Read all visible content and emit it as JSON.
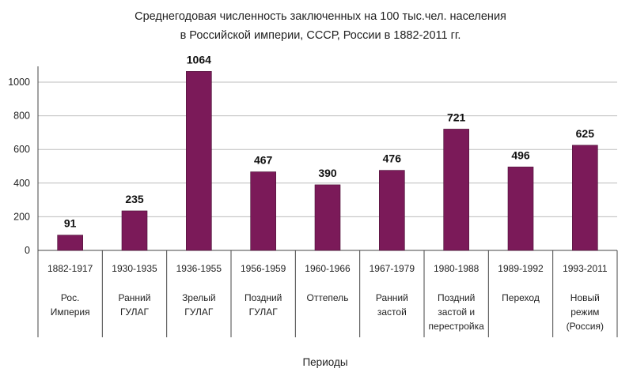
{
  "chart_data": {
    "type": "bar",
    "title": "Среднегодовая численность заключенных на 100 тыс.чел. населения",
    "subtitle": "в Российской империи, СССР, России в 1882-2011 гг.",
    "xlabel": "Периоды",
    "ylabel": "",
    "ylim": [
      0,
      1000
    ],
    "yticks": [
      "0",
      "200",
      "400",
      "600",
      "800",
      "1000"
    ],
    "grid": true,
    "bar_color": "#7b1a59",
    "categories": [
      {
        "years": "1882-1917",
        "label": [
          "Рос.",
          "Империя"
        ]
      },
      {
        "years": "1930-1935",
        "label": [
          "Ранний",
          "ГУЛАГ"
        ]
      },
      {
        "years": "1936-1955",
        "label": [
          "Зрелый",
          "ГУЛАГ"
        ]
      },
      {
        "years": "1956-1959",
        "label": [
          "Поздний",
          "ГУЛАГ"
        ]
      },
      {
        "years": "1960-1966",
        "label": [
          "Оттепель"
        ]
      },
      {
        "years": "1967-1979",
        "label": [
          "Ранний",
          "застой"
        ]
      },
      {
        "years": "1980-1988",
        "label": [
          "Поздний",
          "застой и",
          "перестройка"
        ]
      },
      {
        "years": "1989-1992",
        "label": [
          "Переход"
        ]
      },
      {
        "years": "1993-2011",
        "label": [
          "Новый",
          "режим",
          "(Россия)"
        ]
      }
    ],
    "values": [
      91,
      235,
      1064,
      467,
      390,
      476,
      721,
      496,
      625
    ],
    "data_labels": [
      "91",
      "235",
      "1064",
      "467",
      "390",
      "476",
      "721",
      "496",
      "625"
    ]
  }
}
